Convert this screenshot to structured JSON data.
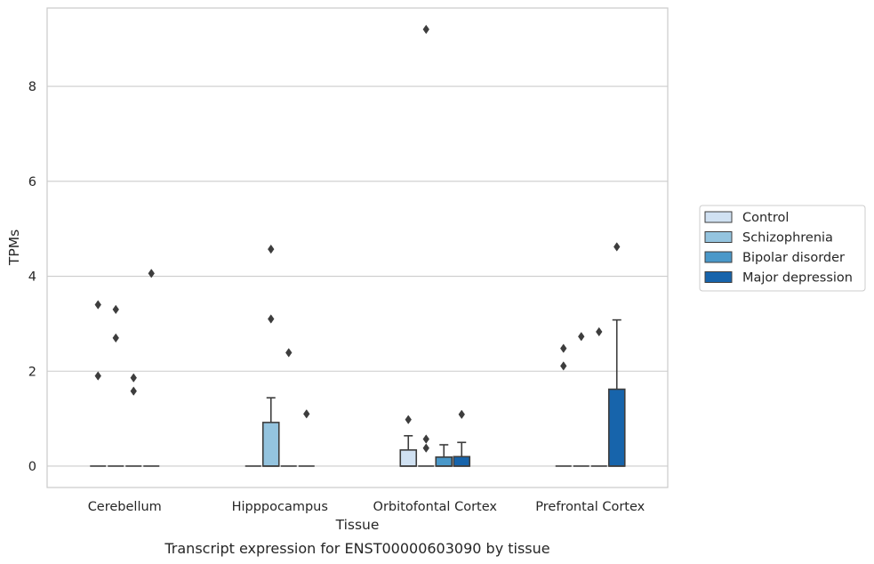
{
  "chart_data": {
    "type": "box",
    "xlabel": "Tissue",
    "ylabel": "TPMs",
    "caption": "Transcript expression for ENST00000603090 by tissue",
    "ylim": [
      -0.45,
      9.65
    ],
    "yticks": [
      0,
      2,
      4,
      6,
      8
    ],
    "grid": "horizontal",
    "legend_position": "right",
    "categories": [
      "Cerebellum",
      "Hipppocampus",
      "Orbitofontal Cortex",
      "Prefrontal Cortex"
    ],
    "series": [
      {
        "name": "Control",
        "color": "#d0e1f2",
        "boxes": [
          {
            "q1": 0,
            "median": 0,
            "q3": 0,
            "whislo": 0,
            "whishi": 0,
            "fliers": [
              3.4,
              1.9
            ]
          },
          {
            "q1": 0,
            "median": 0,
            "q3": 0,
            "whislo": 0,
            "whishi": 0,
            "fliers": []
          },
          {
            "q1": 0,
            "median": 0,
            "q3": 0.34,
            "whislo": 0,
            "whishi": 0.64,
            "fliers": [
              0.98
            ]
          },
          {
            "q1": 0,
            "median": 0,
            "q3": 0,
            "whislo": 0,
            "whishi": 0,
            "fliers": [
              2.48,
              2.11
            ]
          }
        ]
      },
      {
        "name": "Schizophrenia",
        "color": "#94c4df",
        "boxes": [
          {
            "q1": 0,
            "median": 0,
            "q3": 0,
            "whislo": 0,
            "whishi": 0,
            "fliers": [
              3.3,
              2.7
            ]
          },
          {
            "q1": 0,
            "median": 0,
            "q3": 0.92,
            "whislo": 0,
            "whishi": 1.44,
            "fliers": [
              4.57,
              3.1
            ]
          },
          {
            "q1": 0,
            "median": 0,
            "q3": 0,
            "whislo": 0,
            "whishi": 0,
            "fliers": [
              0.57,
              0.38,
              9.2
            ]
          },
          {
            "q1": 0,
            "median": 0,
            "q3": 0,
            "whislo": 0,
            "whishi": 0,
            "fliers": [
              2.73
            ]
          }
        ]
      },
      {
        "name": "Bipolar disorder",
        "color": "#4a98c9",
        "boxes": [
          {
            "q1": 0,
            "median": 0,
            "q3": 0,
            "whislo": 0,
            "whishi": 0,
            "fliers": [
              1.86,
              1.58
            ]
          },
          {
            "q1": 0,
            "median": 0,
            "q3": 0,
            "whislo": 0,
            "whishi": 0,
            "fliers": [
              2.39
            ]
          },
          {
            "q1": 0,
            "median": 0,
            "q3": 0.19,
            "whislo": 0,
            "whishi": 0.45,
            "fliers": []
          },
          {
            "q1": 0,
            "median": 0,
            "q3": 0,
            "whislo": 0,
            "whishi": 0,
            "fliers": [
              2.83
            ]
          }
        ]
      },
      {
        "name": "Major depression",
        "color": "#1764ab",
        "boxes": [
          {
            "q1": 0,
            "median": 0,
            "q3": 0,
            "whislo": 0,
            "whishi": 0,
            "fliers": [
              4.06
            ]
          },
          {
            "q1": 0,
            "median": 0,
            "q3": 0,
            "whislo": 0,
            "whishi": 0,
            "fliers": [
              1.1
            ]
          },
          {
            "q1": 0,
            "median": 0,
            "q3": 0.2,
            "whislo": 0,
            "whishi": 0.5,
            "fliers": [
              1.09
            ]
          },
          {
            "q1": 0,
            "median": 0,
            "q3": 1.62,
            "whislo": 0,
            "whishi": 3.08,
            "fliers": [
              4.62
            ]
          }
        ]
      }
    ]
  }
}
